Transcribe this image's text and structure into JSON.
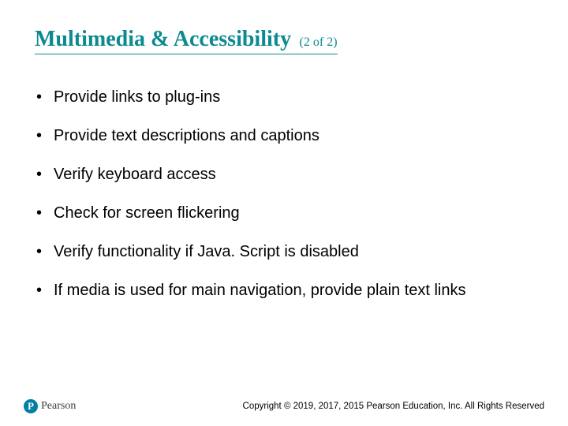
{
  "colors": {
    "title": "#0b8a8f",
    "underline": "#0b8a8f",
    "body_text": "#000000",
    "bullet": "#333333",
    "logo_bg": "#007fa3",
    "logo_text": "#3a3a3a",
    "copyright": "#000000",
    "background": "#ffffff"
  },
  "fontsizes": {
    "title": 28,
    "subtitle": 16,
    "bullet": 20,
    "copyright": 11.5,
    "logo_text": 14
  },
  "title": "Multimedia & Accessibility",
  "subtitle": "(2 of 2)",
  "bullets": [
    "Provide links to plug-ins",
    "Provide text descriptions and captions",
    "Verify keyboard access",
    "Check for screen flickering",
    "Verify functionality if Java. Script is disabled",
    "If media is used for main navigation, provide plain text links"
  ],
  "logo": {
    "mark": "P",
    "text": "Pearson"
  },
  "copyright": "Copyright © 2019, 2017, 2015 Pearson Education, Inc. All Rights Reserved"
}
